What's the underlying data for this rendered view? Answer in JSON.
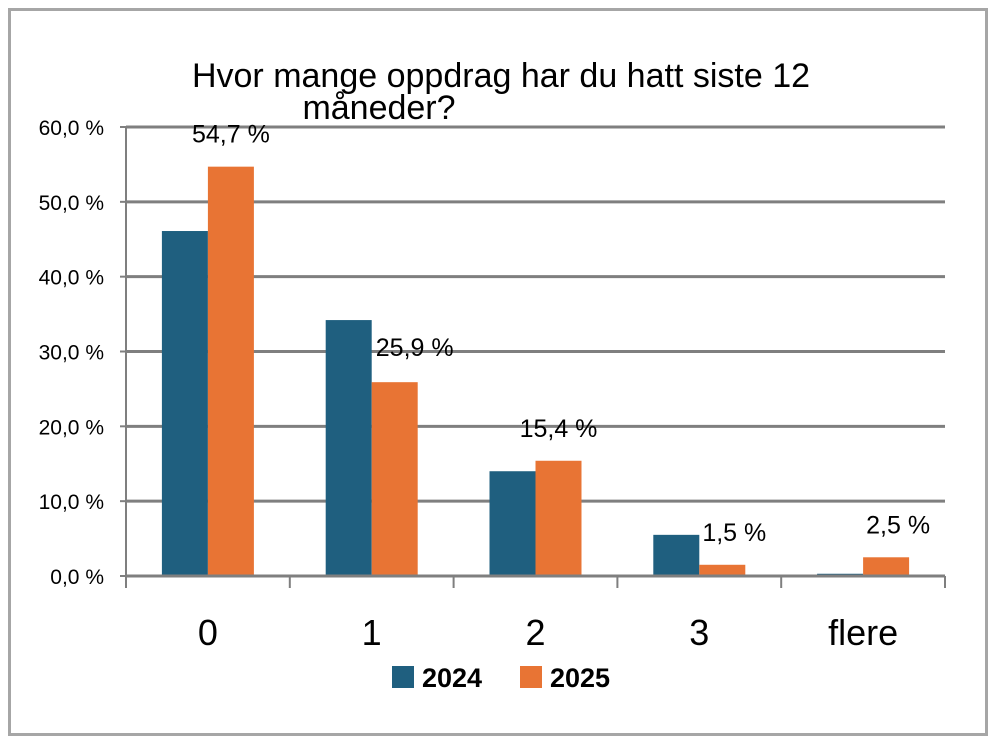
{
  "chart_data": {
    "type": "bar",
    "title_lines": [
      "Hvor mange oppdrag har du hatt siste 12",
      "måneder?"
    ],
    "categories": [
      "0",
      "1",
      "2",
      "3",
      "flere"
    ],
    "series": [
      {
        "name": "2024",
        "color": "#1f5f7f",
        "values": [
          46.1,
          34.2,
          14.0,
          5.5,
          0.3
        ],
        "labels": [
          "",
          "",
          "",
          "",
          ""
        ]
      },
      {
        "name": "2025",
        "color": "#e87434",
        "values": [
          54.7,
          25.9,
          15.4,
          1.5,
          2.5
        ],
        "labels": [
          "54,7 %",
          "25,9 %",
          "15,4 %",
          "1,5 %",
          "2,5 %"
        ]
      }
    ],
    "y_ticks": [
      {
        "value": 0,
        "label": "0,0 %"
      },
      {
        "value": 10,
        "label": "10,0 %"
      },
      {
        "value": 20,
        "label": "20,0 %"
      },
      {
        "value": 30,
        "label": "30,0 %"
      },
      {
        "value": 40,
        "label": "40,0 %"
      },
      {
        "value": 50,
        "label": "50,0 %"
      },
      {
        "value": 60,
        "label": "60,0 %"
      }
    ],
    "ylim": [
      0,
      60
    ],
    "grid": true,
    "legend_position": "bottom",
    "gridline_color": "#7f7f7f",
    "frame_color": "#a6a6a6"
  }
}
